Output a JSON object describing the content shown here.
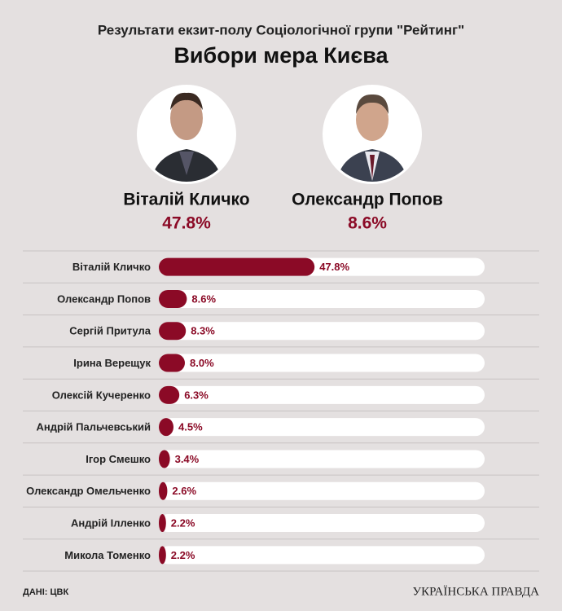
{
  "chart_data": {
    "type": "bar",
    "title": "Результати екзит-полу Соціологічної групи \"Рейтинг\"",
    "subtitle": "Вибори мера Києва",
    "categories": [
      "Віталій Кличко",
      "Олександр Попов",
      "Сергій Притула",
      "Ірина Верещук",
      "Олексій Кучеренко",
      "Андрій Пальчевський",
      "Ігор Смешко",
      "Олександр Омельченко",
      "Андрій Ілленко",
      "Микола Томенко"
    ],
    "values": [
      47.8,
      8.6,
      8.3,
      8.0,
      6.3,
      4.5,
      3.4,
      2.6,
      2.2,
      2.2
    ],
    "value_labels": [
      "47.8%",
      "8.6%",
      "8.3%",
      "8.0%",
      "6.3%",
      "4.5%",
      "3.4%",
      "2.6%",
      "2.2%",
      "2.2%"
    ],
    "color": "#8b0a26",
    "xlim": [
      0,
      100
    ],
    "source": "ДАНІ: ЦВК",
    "brand": "УКРАЇНСЬКА ПРАВДА"
  }
}
